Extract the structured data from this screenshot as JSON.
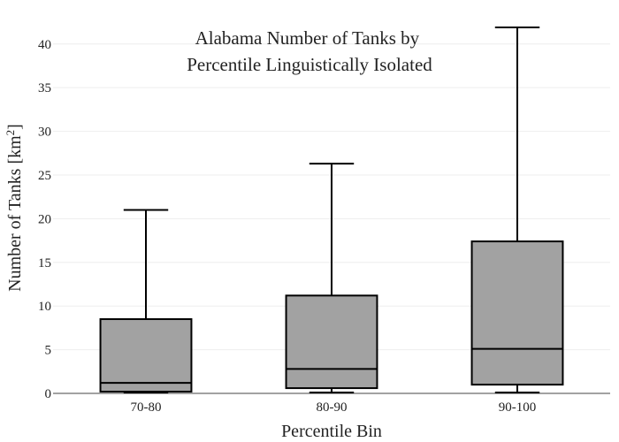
{
  "chart_data": {
    "type": "box",
    "title": "Alabama Number of Tanks by\nPercentile Linguistically Isolated",
    "xlabel": "Percentile Bin",
    "ylabel_main": "Number of Tanks  [km",
    "ylabel_sup": "2",
    "ylabel_close": "]",
    "ylim": [
      0,
      42
    ],
    "yticks": [
      0,
      5,
      10,
      15,
      20,
      25,
      30,
      35,
      40
    ],
    "grid": true,
    "categories": [
      "70-80",
      "80-90",
      "90-100"
    ],
    "boxes": [
      {
        "min": 0.1,
        "q1": 0.2,
        "median": 1.2,
        "q3": 8.5,
        "max": 21.0
      },
      {
        "min": 0.1,
        "q1": 0.6,
        "median": 2.8,
        "q3": 11.2,
        "max": 26.3
      },
      {
        "min": 0.1,
        "q1": 1.0,
        "median": 5.1,
        "q3": 17.4,
        "max": 41.9
      }
    ],
    "box_color": "#a2a2a2"
  }
}
